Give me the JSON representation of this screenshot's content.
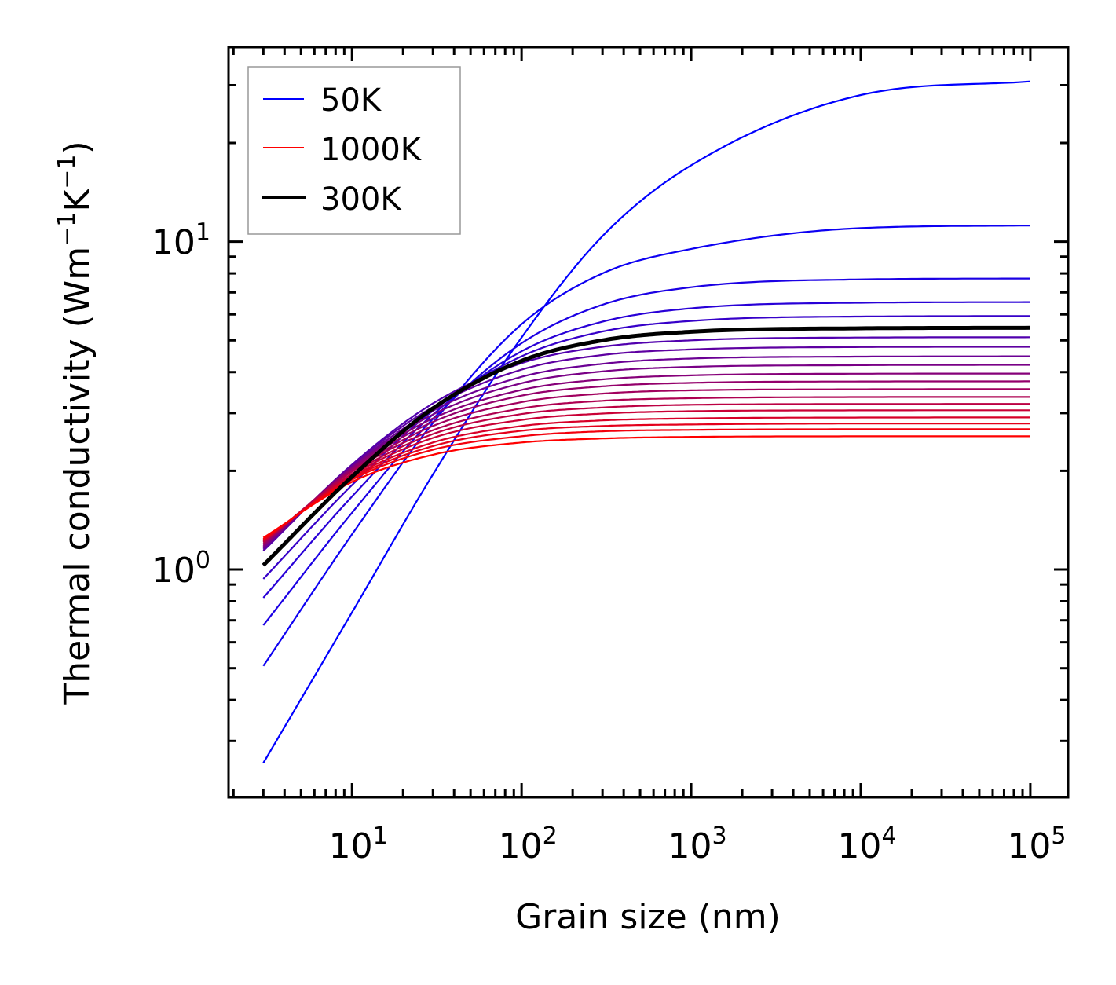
{
  "chart_data": {
    "type": "line",
    "title": "",
    "xlabel": "Grain size (nm)",
    "ylabel": "Thermal conductivity (Wm⁻¹K⁻¹)",
    "ylabel_parts": {
      "main": "Thermal conductivity (Wm",
      "sup1": "−1",
      "mid": "K",
      "sup2": "−1",
      "end": ")"
    },
    "xscale": "log",
    "yscale": "log",
    "xlim": [
      1.87,
      167000
    ],
    "ylim": [
      0.202,
      39.2
    ],
    "grid": false,
    "legend_position": "top-left",
    "x_ticks": [
      {
        "value": 10,
        "base": "10",
        "exp": "1"
      },
      {
        "value": 100,
        "base": "10",
        "exp": "2"
      },
      {
        "value": 1000,
        "base": "10",
        "exp": "3"
      },
      {
        "value": 10000,
        "base": "10",
        "exp": "4"
      },
      {
        "value": 100000,
        "base": "10",
        "exp": "5"
      }
    ],
    "y_ticks": [
      {
        "value": 1,
        "base": "10",
        "exp": "0"
      },
      {
        "value": 10,
        "base": "10",
        "exp": "1"
      }
    ],
    "legend": [
      {
        "label": "50K",
        "color": "#0000ff",
        "style": "thin"
      },
      {
        "label": "1000K",
        "color": "#ff0000",
        "style": "thin"
      },
      {
        "label": "300K",
        "color": "#000000",
        "style": "thick"
      }
    ],
    "x": [
      3,
      10,
      30,
      100,
      300,
      1000,
      10000,
      100000
    ],
    "series": [
      {
        "name": "50K",
        "temperature": 50,
        "values": [
          0.257,
          0.74,
          1.95,
          5.1,
          10.4,
          17.1,
          28.0,
          30.8
        ]
      },
      {
        "name": "100K",
        "temperature": 100,
        "values": [
          0.508,
          1.28,
          2.8,
          5.6,
          8.0,
          9.5,
          11.0,
          11.2
        ]
      },
      {
        "name": "150K",
        "temperature": 150,
        "values": [
          0.676,
          1.49,
          2.88,
          4.9,
          6.42,
          7.26,
          7.67,
          7.72
        ]
      },
      {
        "name": "200K",
        "temperature": 200,
        "values": [
          0.82,
          1.67,
          2.97,
          4.63,
          5.7,
          6.26,
          6.51,
          6.54
        ]
      },
      {
        "name": "250K",
        "temperature": 250,
        "values": [
          0.936,
          1.81,
          3.05,
          4.47,
          5.32,
          5.73,
          5.91,
          5.93
        ]
      },
      {
        "name": "300K",
        "temperature": 300,
        "values": [
          1.03,
          1.92,
          3.1,
          4.33,
          5.0,
          5.31,
          5.44,
          5.46
        ]
      },
      {
        "name": "350K",
        "temperature": 350,
        "values": [
          1.14,
          2.09,
          3.21,
          4.26,
          4.78,
          5.0,
          5.1,
          5.11
        ]
      },
      {
        "name": "400K",
        "temperature": 400,
        "values": [
          1.15,
          2.08,
          3.13,
          4.07,
          4.51,
          4.69,
          4.77,
          4.78
        ]
      },
      {
        "name": "450K",
        "temperature": 450,
        "values": [
          1.16,
          2.06,
          3.05,
          3.87,
          4.24,
          4.4,
          4.46,
          4.47
        ]
      },
      {
        "name": "500K",
        "temperature": 500,
        "values": [
          1.17,
          2.05,
          2.97,
          3.7,
          4.02,
          4.15,
          4.2,
          4.21
        ]
      },
      {
        "name": "550K",
        "temperature": 550,
        "values": [
          1.18,
          2.04,
          2.89,
          3.53,
          3.8,
          3.91,
          3.955,
          3.96
        ]
      },
      {
        "name": "600K",
        "temperature": 600,
        "values": [
          1.19,
          2.02,
          2.82,
          3.39,
          3.62,
          3.71,
          3.746,
          3.75
        ]
      },
      {
        "name": "650K",
        "temperature": 650,
        "values": [
          1.2,
          2.0,
          2.74,
          3.24,
          3.44,
          3.52,
          3.546,
          3.55
        ]
      },
      {
        "name": "700K",
        "temperature": 700,
        "values": [
          1.21,
          1.99,
          2.66,
          3.1,
          3.27,
          3.33,
          3.357,
          3.36
        ]
      },
      {
        "name": "750K",
        "temperature": 750,
        "values": [
          1.215,
          1.96,
          2.59,
          2.98,
          3.12,
          3.18,
          3.197,
          3.2
        ]
      },
      {
        "name": "800K",
        "temperature": 800,
        "values": [
          1.22,
          1.94,
          2.52,
          2.86,
          2.99,
          3.04,
          3.058,
          3.06
        ]
      },
      {
        "name": "850K",
        "temperature": 850,
        "values": [
          1.23,
          1.92,
          2.44,
          2.74,
          2.85,
          2.89,
          2.908,
          2.91
        ]
      },
      {
        "name": "900K",
        "temperature": 900,
        "values": [
          1.235,
          1.9,
          2.38,
          2.65,
          2.74,
          2.77,
          2.788,
          2.79
        ]
      },
      {
        "name": "950K",
        "temperature": 950,
        "values": [
          1.24,
          1.88,
          2.32,
          2.55,
          2.64,
          2.667,
          2.679,
          2.68
        ]
      },
      {
        "name": "1000K",
        "temperature": 1000,
        "values": [
          1.25,
          1.85,
          2.24,
          2.44,
          2.51,
          2.539,
          2.549,
          2.55
        ]
      }
    ],
    "highlight_series": "300K",
    "highlight_color": "#000000",
    "colormap": {
      "start": "#0000ff",
      "end": "#ff0000"
    }
  }
}
